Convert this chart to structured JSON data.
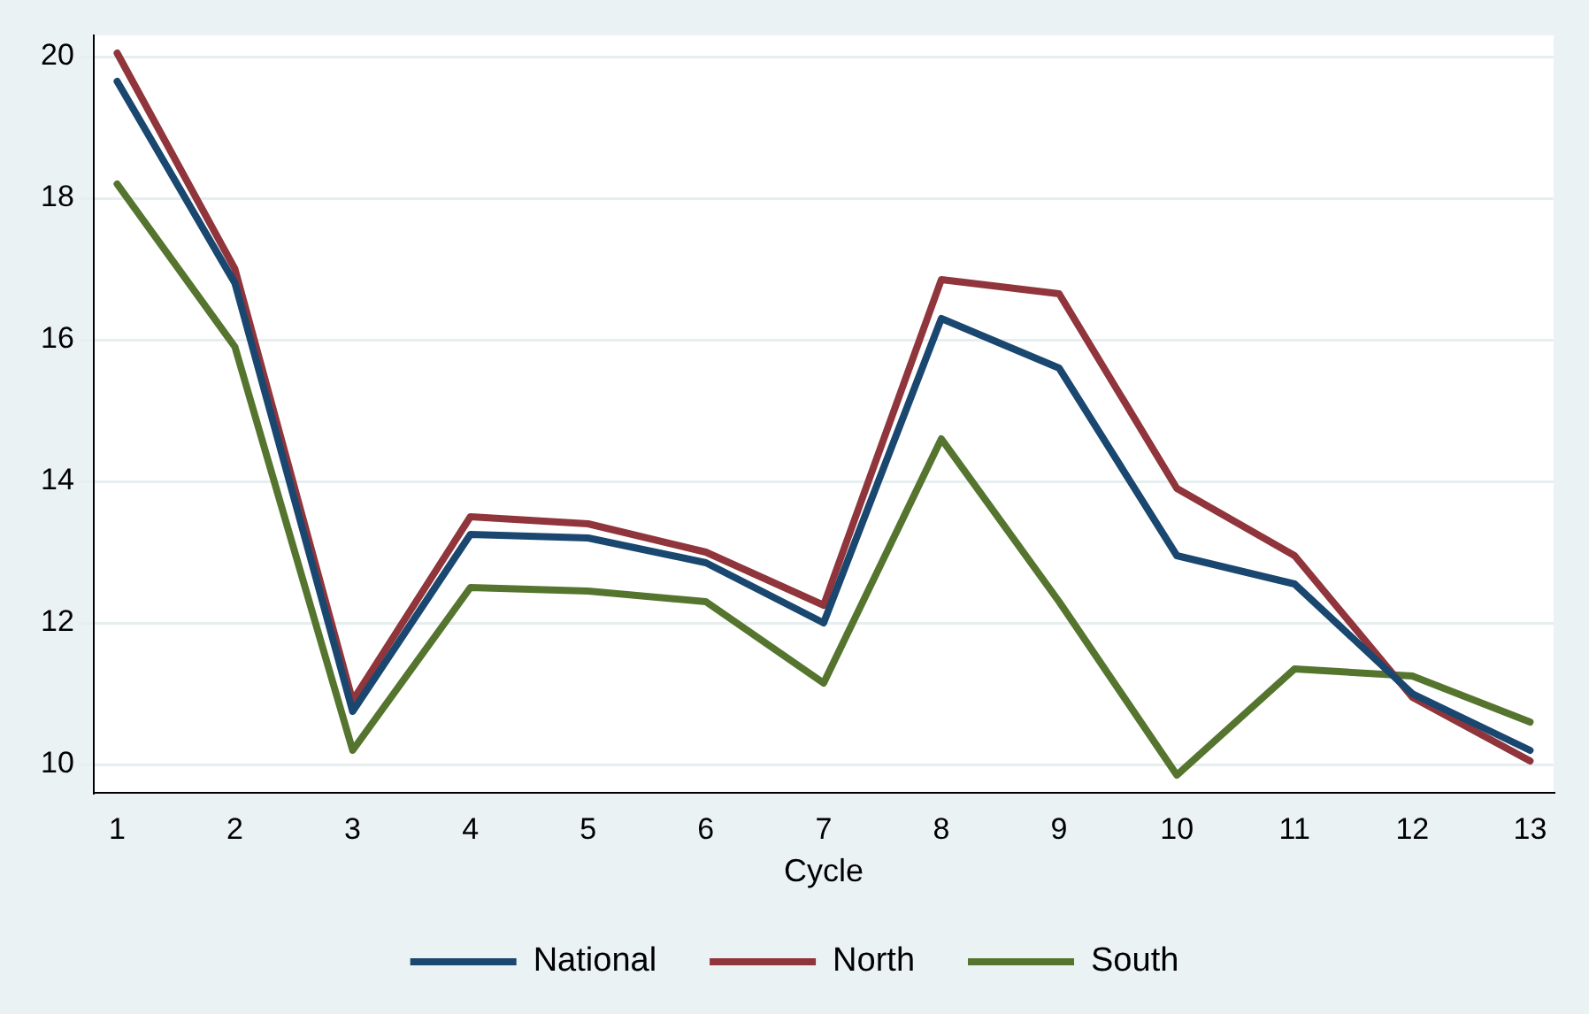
{
  "chart_data": {
    "type": "line",
    "xlabel": "Cycle",
    "x": [
      1,
      2,
      3,
      4,
      5,
      6,
      7,
      8,
      9,
      10,
      11,
      12,
      13
    ],
    "series": [
      {
        "name": "National",
        "color": "#1a476f",
        "values": [
          19.65,
          16.8,
          10.75,
          13.25,
          13.2,
          12.85,
          12.0,
          16.3,
          15.6,
          12.95,
          12.55,
          11.0,
          10.2
        ]
      },
      {
        "name": "North",
        "color": "#90353b",
        "values": [
          20.05,
          17.0,
          10.9,
          13.5,
          13.4,
          13.0,
          12.25,
          16.85,
          16.65,
          13.9,
          12.95,
          10.95,
          10.05
        ]
      },
      {
        "name": "South",
        "color": "#55752f",
        "values": [
          18.2,
          15.9,
          10.2,
          12.5,
          12.45,
          12.3,
          11.15,
          14.6,
          12.3,
          9.85,
          11.35,
          11.25,
          10.6
        ]
      }
    ],
    "xlim": [
      0.8,
      13.2
    ],
    "xticks": [
      1,
      2,
      3,
      4,
      5,
      6,
      7,
      8,
      9,
      10,
      11,
      12,
      13
    ],
    "ylim": [
      9.6,
      20.3
    ],
    "yticks": [
      10,
      12,
      14,
      16,
      18,
      20
    ],
    "grid": "y",
    "legend": "bottom",
    "marker": "none",
    "line_style": "solid"
  }
}
